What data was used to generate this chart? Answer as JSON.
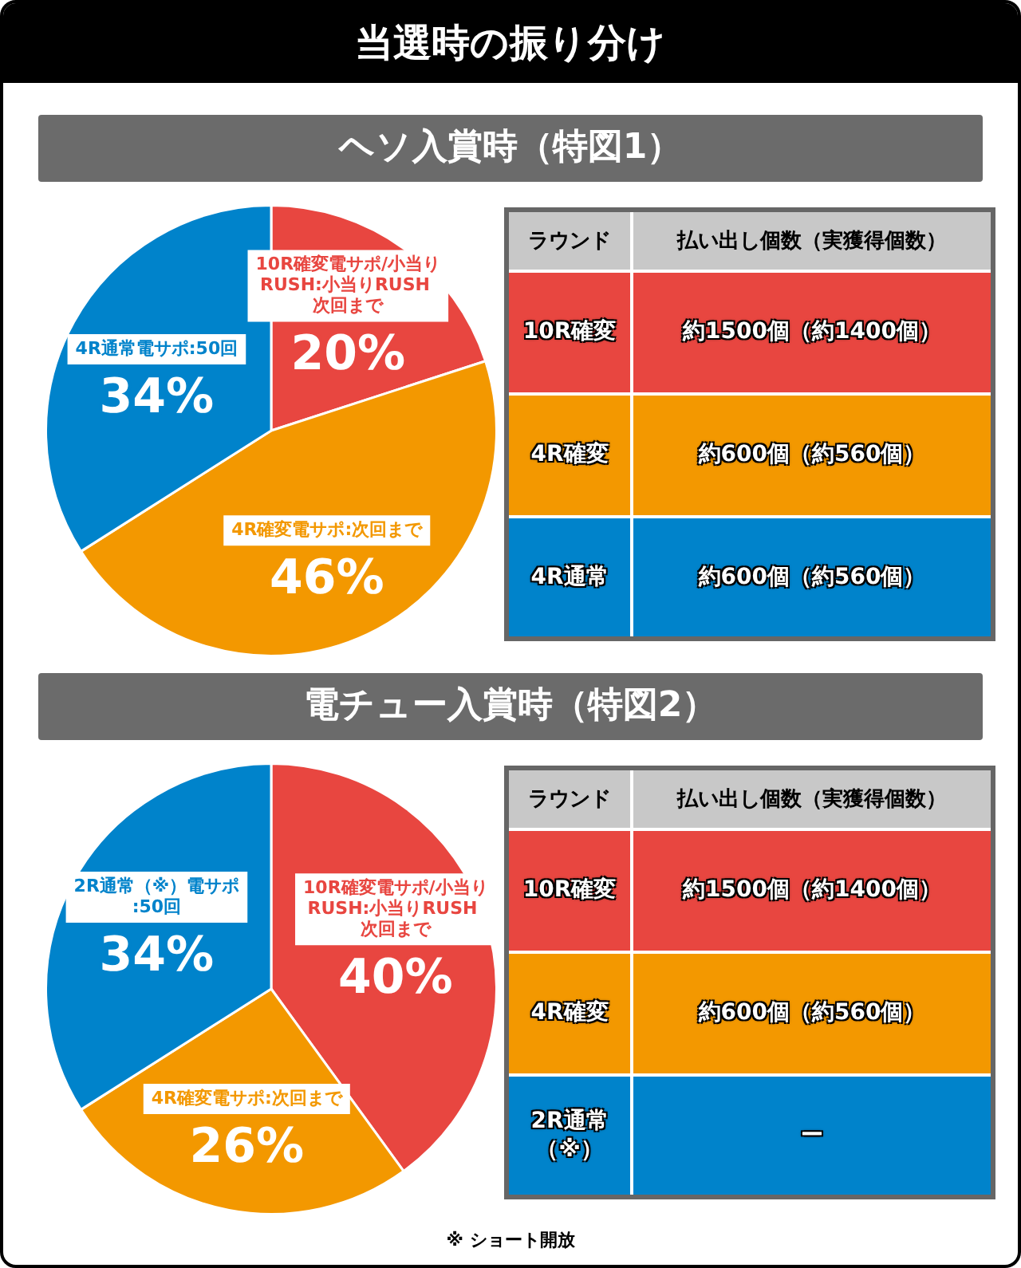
{
  "chart_data": [
    {
      "type": "pie",
      "title": "当選時の振り分け",
      "subtitle": "ヘソ入賞時（特図1）",
      "categories": [
        "10R確変電サポ/小当りRUSH:小当りRUSH 次回まで",
        "4R確変電サポ:次回まで",
        "4R通常電サポ:50回"
      ],
      "values": [
        20,
        46,
        34
      ],
      "value_labels": [
        "20%",
        "46%",
        "34%"
      ],
      "colors": [
        "#e84640",
        "#f39800",
        "#0083cb"
      ],
      "legend": false,
      "annotations": [
        "ラウンド",
        "払い出し個数（実獲得個数）",
        "10R確変",
        "約1500個（約1400個）",
        "4R確変",
        "約600個（約560個）",
        "4R通常",
        "約600個（約560個）"
      ]
    },
    {
      "type": "pie",
      "subtitle": "電チュー入賞時（特図2）",
      "categories": [
        "10R確変電サポ/小当りRUSH:小当りRUSH 次回まで",
        "4R確変電サポ:次回まで",
        "2R通常（※）電サポ:50回"
      ],
      "values": [
        40,
        26,
        34
      ],
      "value_labels": [
        "40%",
        "26%",
        "34%"
      ],
      "colors": [
        "#e84640",
        "#f39800",
        "#0083cb"
      ],
      "legend": false,
      "annotations": [
        "ラウンド",
        "払い出し個数（実獲得個数）",
        "10R確変",
        "約1500個（約1400個）",
        "4R確変",
        "約600個（約560個）",
        "2R通常（※）",
        "ー",
        "※ ショート開放"
      ]
    }
  ]
}
